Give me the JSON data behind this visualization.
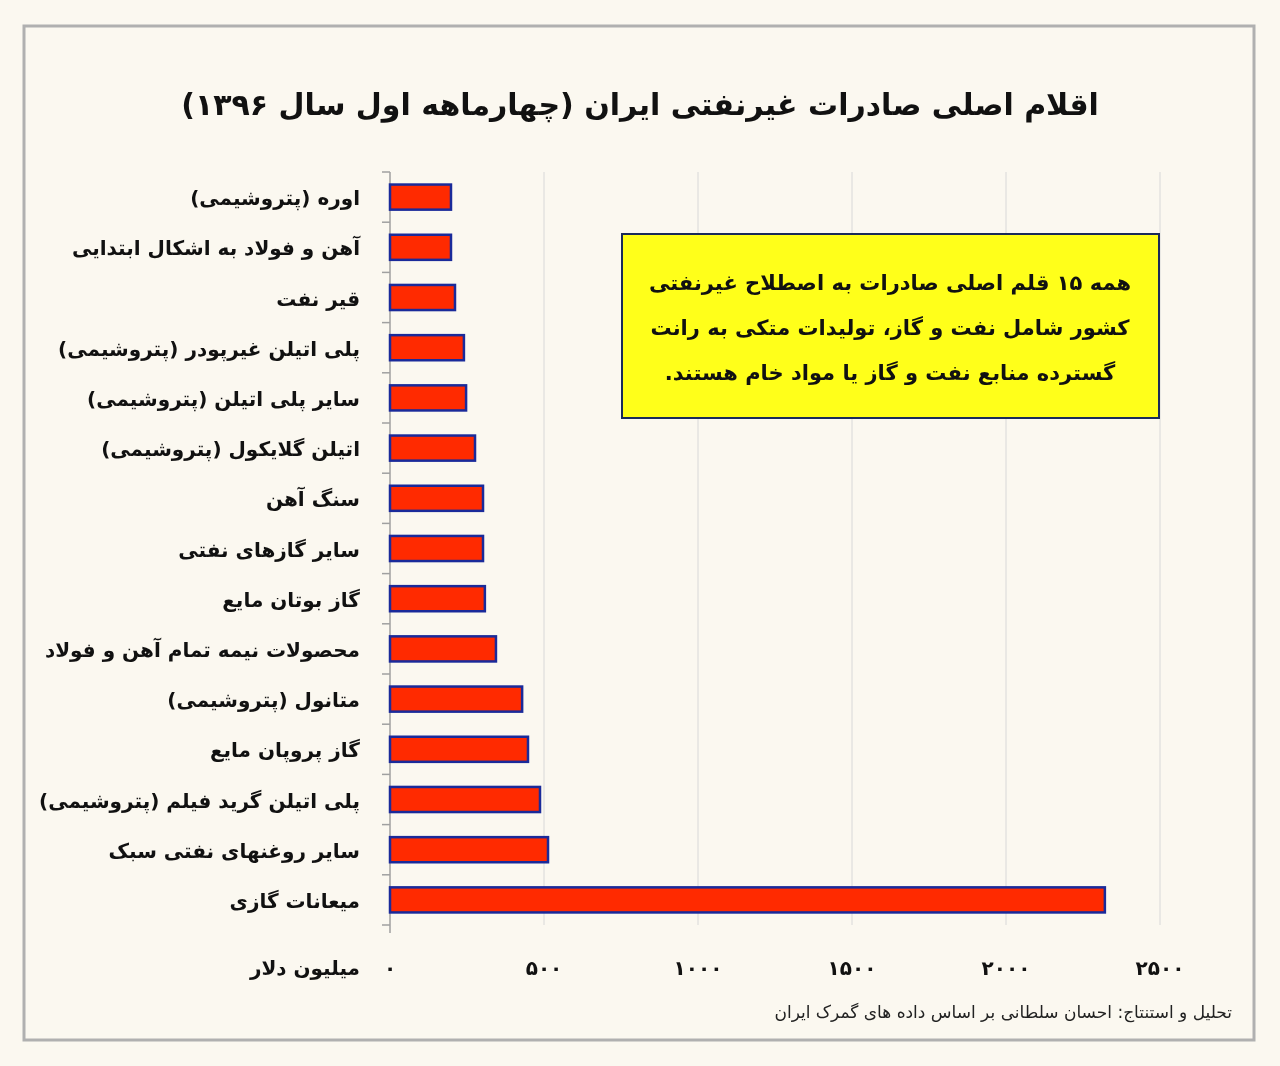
{
  "chart_data": {
    "type": "bar",
    "orientation": "horizontal",
    "title": "اقلام اصلی صادرات غیرنفتی ایران (چهارماهه اول سال ۱۳۹۶)",
    "xlabel": "میلیون دلار",
    "categories": [
      "اوره (پتروشیمی)",
      "آهن و فولاد به اشکال ابتدایی",
      "قیر نفت",
      "پلی اتیلن غیرپودر (پتروشیمی)",
      "سایر پلی اتیلن (پتروشیمی)",
      "اتیلن گلایکول (پتروشیمی)",
      "سنگ آهن",
      "سایر گازهای نفتی",
      "گاز بوتان مایع",
      "محصولات نیمه تمام آهن و فولاد",
      "متانول (پتروشیمی)",
      "گاز پروپان مایع",
      "پلی اتیلن گرید فیلم (پتروشیمی)",
      "سایر روغنهای نفتی سبک",
      "میعانات گازی"
    ],
    "series": [
      {
        "color": "#ff2a00",
        "values": [
          198,
          198,
          211,
          240,
          247,
          276,
          302,
          302,
          308,
          344,
          429,
          448,
          487,
          513,
          2321
        ]
      }
    ],
    "xlim": [
      0,
      2500
    ],
    "xticks": [
      {
        "value": 0,
        "label": "۰"
      },
      {
        "value": 500,
        "label": "۵۰۰"
      },
      {
        "value": 1000,
        "label": "۱۰۰۰"
      },
      {
        "value": 1500,
        "label": "۱۵۰۰"
      },
      {
        "value": 2000,
        "label": "۲۰۰۰"
      },
      {
        "value": 2500,
        "label": "۲۵۰۰"
      }
    ],
    "grid": "x",
    "annotations": [
      "همه ۱۵ قلم اصلی صادرات به اصطلاح غیرنفتی\nکشور شامل نفت و گاز، تولیدات متکی به رانت\nگسترده منابع نفت و گاز یا مواد خام هستند.",
      "تحلیل و استنتاج: احسان سلطانی بر اساس داده های گمرک ایران"
    ]
  }
}
